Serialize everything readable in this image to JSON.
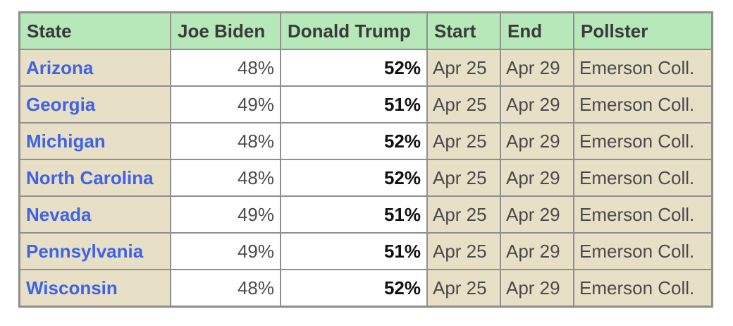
{
  "table": {
    "headers": {
      "state": "State",
      "biden": "Joe Biden",
      "trump": "Donald Trump",
      "start": "Start",
      "end": "End",
      "pollster": "Pollster"
    },
    "rows": [
      {
        "state": "Arizona",
        "biden": "48%",
        "trump": "52%",
        "start": "Apr 25",
        "end": "Apr 29",
        "pollster": "Emerson Coll."
      },
      {
        "state": "Georgia",
        "biden": "49%",
        "trump": "51%",
        "start": "Apr 25",
        "end": "Apr 29",
        "pollster": "Emerson Coll."
      },
      {
        "state": "Michigan",
        "biden": "48%",
        "trump": "52%",
        "start": "Apr 25",
        "end": "Apr 29",
        "pollster": "Emerson Coll."
      },
      {
        "state": "North Carolina",
        "biden": "48%",
        "trump": "52%",
        "start": "Apr 25",
        "end": "Apr 29",
        "pollster": "Emerson Coll."
      },
      {
        "state": "Nevada",
        "biden": "49%",
        "trump": "51%",
        "start": "Apr 25",
        "end": "Apr 29",
        "pollster": "Emerson Coll."
      },
      {
        "state": "Pennsylvania",
        "biden": "49%",
        "trump": "51%",
        "start": "Apr 25",
        "end": "Apr 29",
        "pollster": "Emerson Coll."
      },
      {
        "state": "Wisconsin",
        "biden": "48%",
        "trump": "52%",
        "start": "Apr 25",
        "end": "Apr 29",
        "pollster": "Emerson Coll."
      }
    ]
  },
  "colors": {
    "header_bg": "#b7e8b9",
    "state_link": "#3f63e6",
    "date_bg": "#e8dfc7",
    "border": "#8f8f8f"
  }
}
